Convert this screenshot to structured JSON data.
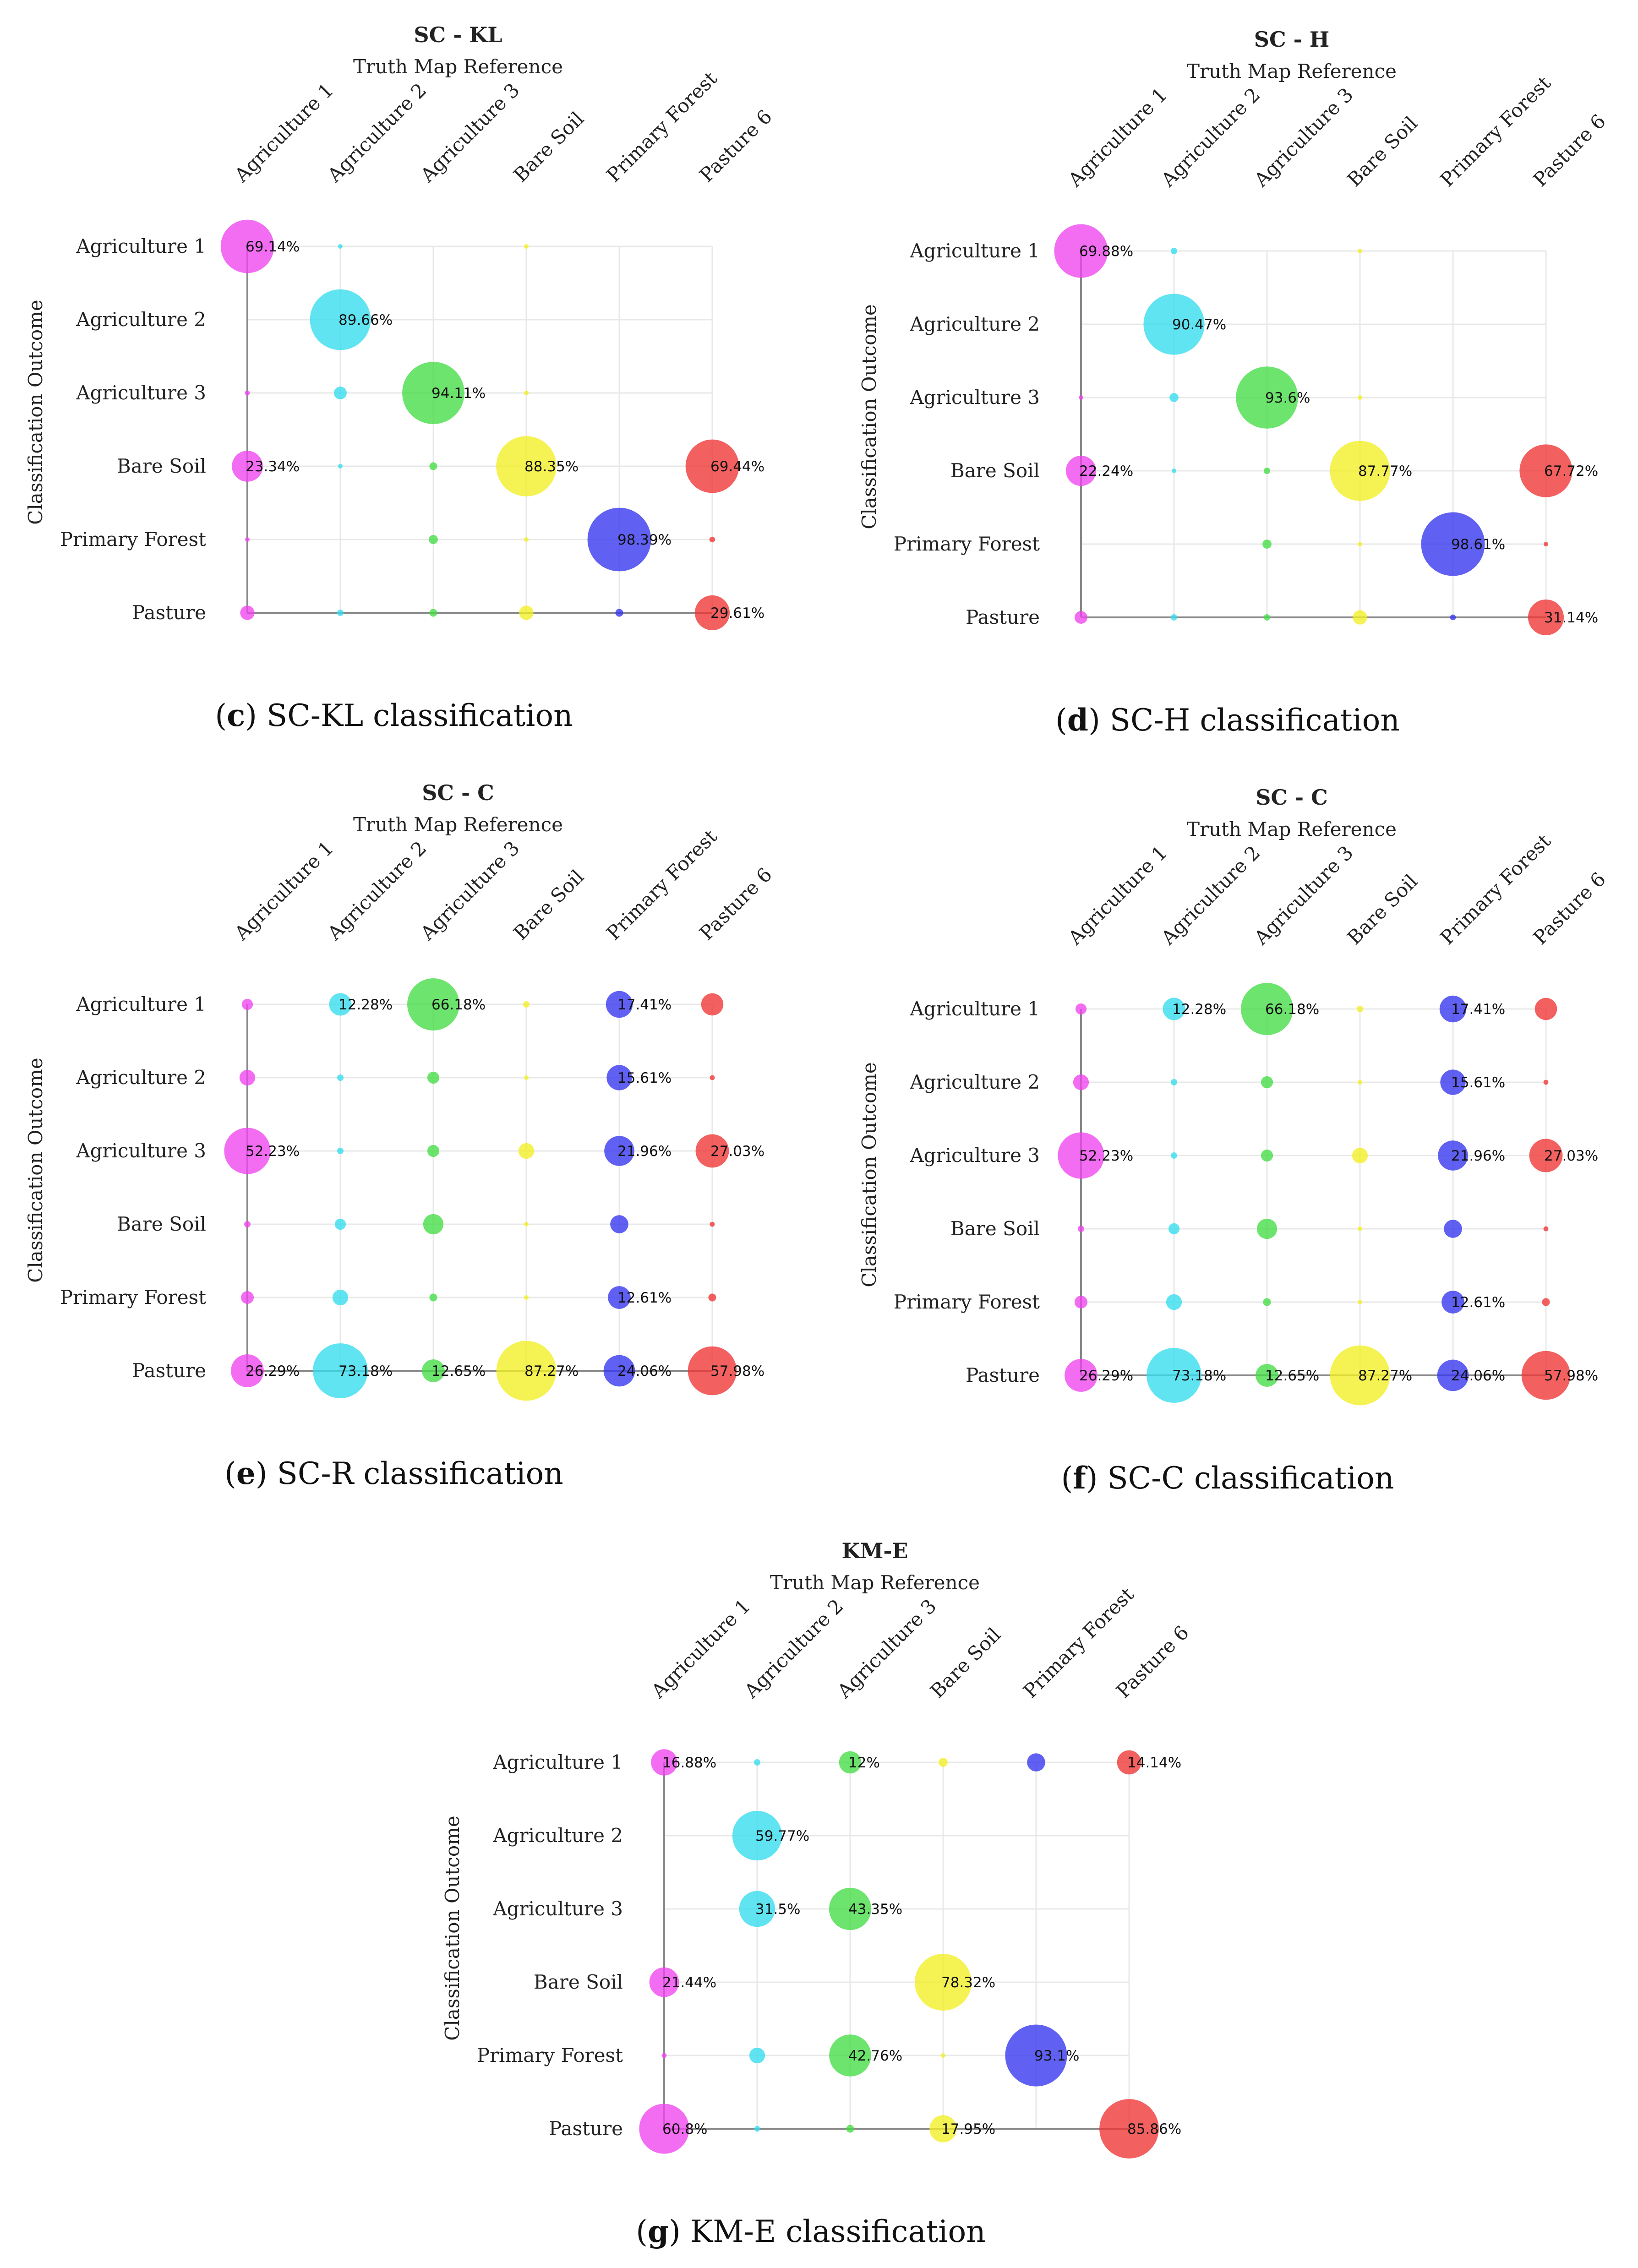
{
  "chart_data": [
    {
      "id": "c",
      "type": "bubble",
      "title": "SC - KL",
      "subtitle": "Truth Map Reference",
      "ylabel": "Classification Outcome",
      "caption_letter": "c",
      "caption_text": " SC-KL classification",
      "columns": [
        "Agriculture 1",
        "Agriculture 2",
        "Agriculture 3",
        "Bare Soil",
        "Primary Forest",
        "Pasture 6"
      ],
      "rows": [
        "Agriculture 1",
        "Agriculture 2",
        "Agriculture 3",
        "Bare Soil",
        "Primary Forest",
        "Pasture"
      ],
      "cells": [
        {
          "r": 0,
          "c": 0,
          "v": 69.14,
          "label": "69.14%"
        },
        {
          "r": 0,
          "c": 1,
          "v": 0.5
        },
        {
          "r": 0,
          "c": 3,
          "v": 0.5
        },
        {
          "r": 1,
          "c": 1,
          "v": 89.66,
          "label": "89.66%"
        },
        {
          "r": 2,
          "c": 0,
          "v": 0.6
        },
        {
          "r": 2,
          "c": 1,
          "v": 4
        },
        {
          "r": 2,
          "c": 2,
          "v": 94.11,
          "label": "94.11%"
        },
        {
          "r": 2,
          "c": 3,
          "v": 0.4
        },
        {
          "r": 3,
          "c": 0,
          "v": 23.34,
          "label": "23.34%"
        },
        {
          "r": 3,
          "c": 1,
          "v": 0.4
        },
        {
          "r": 3,
          "c": 2,
          "v": 1.5
        },
        {
          "r": 3,
          "c": 3,
          "v": 88.35,
          "label": "88.35%"
        },
        {
          "r": 3,
          "c": 5,
          "v": 69.44,
          "label": "69.44%"
        },
        {
          "r": 4,
          "c": 0,
          "v": 0.3
        },
        {
          "r": 4,
          "c": 2,
          "v": 2
        },
        {
          "r": 4,
          "c": 3,
          "v": 0.4
        },
        {
          "r": 4,
          "c": 4,
          "v": 98.39,
          "label": "98.39%"
        },
        {
          "r": 4,
          "c": 5,
          "v": 0.8
        },
        {
          "r": 5,
          "c": 0,
          "v": 5
        },
        {
          "r": 5,
          "c": 1,
          "v": 1
        },
        {
          "r": 5,
          "c": 2,
          "v": 1.5
        },
        {
          "r": 5,
          "c": 3,
          "v": 5
        },
        {
          "r": 5,
          "c": 4,
          "v": 1.5
        },
        {
          "r": 5,
          "c": 5,
          "v": 29.61,
          "label": "29.61%"
        }
      ]
    },
    {
      "id": "d",
      "type": "bubble",
      "title": "SC - H",
      "subtitle": "Truth Map Reference",
      "ylabel": "Classification Outcome",
      "caption_letter": "d",
      "caption_text": " SC-H classification",
      "columns": [
        "Agriculture 1",
        "Agriculture 2",
        "Agriculture 3",
        "Bare Soil",
        "Primary Forest",
        "Pasture 6"
      ],
      "rows": [
        "Agriculture 1",
        "Agriculture 2",
        "Agriculture 3",
        "Bare Soil",
        "Primary Forest",
        "Pasture"
      ],
      "cells": [
        {
          "r": 0,
          "c": 0,
          "v": 69.88,
          "label": "69.88%"
        },
        {
          "r": 0,
          "c": 1,
          "v": 1
        },
        {
          "r": 0,
          "c": 3,
          "v": 0.4
        },
        {
          "r": 1,
          "c": 1,
          "v": 90.47,
          "label": "90.47%"
        },
        {
          "r": 2,
          "c": 0,
          "v": 0.5
        },
        {
          "r": 2,
          "c": 1,
          "v": 2
        },
        {
          "r": 2,
          "c": 2,
          "v": 93.6,
          "label": "93.6%"
        },
        {
          "r": 2,
          "c": 3,
          "v": 0.3
        },
        {
          "r": 3,
          "c": 0,
          "v": 22.24,
          "label": "22.24%"
        },
        {
          "r": 3,
          "c": 1,
          "v": 0.5
        },
        {
          "r": 3,
          "c": 2,
          "v": 1
        },
        {
          "r": 3,
          "c": 3,
          "v": 87.77,
          "label": "87.77%"
        },
        {
          "r": 3,
          "c": 5,
          "v": 67.72,
          "label": "67.72%"
        },
        {
          "r": 4,
          "c": 2,
          "v": 2
        },
        {
          "r": 4,
          "c": 3,
          "v": 0.3
        },
        {
          "r": 4,
          "c": 4,
          "v": 98.61,
          "label": "98.61%"
        },
        {
          "r": 4,
          "c": 5,
          "v": 0.5
        },
        {
          "r": 5,
          "c": 0,
          "v": 4
        },
        {
          "r": 5,
          "c": 1,
          "v": 1
        },
        {
          "r": 5,
          "c": 2,
          "v": 1
        },
        {
          "r": 5,
          "c": 3,
          "v": 5
        },
        {
          "r": 5,
          "c": 4,
          "v": 0.8
        },
        {
          "r": 5,
          "c": 5,
          "v": 31.14,
          "label": "31.14%"
        }
      ]
    },
    {
      "id": "e",
      "type": "bubble",
      "title": "SC - C",
      "subtitle": "Truth Map Reference",
      "ylabel": "Classification Outcome",
      "caption_letter": "e",
      "caption_text": " SC-R classification",
      "columns": [
        "Agriculture 1",
        "Agriculture 2",
        "Agriculture 3",
        "Bare Soil",
        "Primary Forest",
        "Pasture 6"
      ],
      "rows": [
        "Agriculture 1",
        "Agriculture 2",
        "Agriculture 3",
        "Bare Soil",
        "Primary Forest",
        "Pasture"
      ],
      "cells": [
        {
          "r": 0,
          "c": 0,
          "v": 3
        },
        {
          "r": 0,
          "c": 1,
          "v": 12.28,
          "label": "12.28%"
        },
        {
          "r": 0,
          "c": 2,
          "v": 66.18,
          "label": "66.18%"
        },
        {
          "r": 0,
          "c": 3,
          "v": 1
        },
        {
          "r": 0,
          "c": 4,
          "v": 17.41,
          "label": "17.41%"
        },
        {
          "r": 0,
          "c": 5,
          "v": 12
        },
        {
          "r": 1,
          "c": 0,
          "v": 6
        },
        {
          "r": 1,
          "c": 1,
          "v": 1
        },
        {
          "r": 1,
          "c": 2,
          "v": 3.5
        },
        {
          "r": 1,
          "c": 3,
          "v": 0.3
        },
        {
          "r": 1,
          "c": 4,
          "v": 15.61,
          "label": "15.61%"
        },
        {
          "r": 1,
          "c": 5,
          "v": 0.6
        },
        {
          "r": 2,
          "c": 0,
          "v": 52.23,
          "label": "52.23%"
        },
        {
          "r": 2,
          "c": 1,
          "v": 1
        },
        {
          "r": 2,
          "c": 2,
          "v": 3.5
        },
        {
          "r": 2,
          "c": 3,
          "v": 6
        },
        {
          "r": 2,
          "c": 4,
          "v": 21.96,
          "label": "21.96%"
        },
        {
          "r": 2,
          "c": 5,
          "v": 27.03,
          "label": "27.03%"
        },
        {
          "r": 3,
          "c": 0,
          "v": 1
        },
        {
          "r": 3,
          "c": 1,
          "v": 3
        },
        {
          "r": 3,
          "c": 2,
          "v": 10
        },
        {
          "r": 3,
          "c": 3,
          "v": 0.3
        },
        {
          "r": 3,
          "c": 4,
          "v": 8
        },
        {
          "r": 3,
          "c": 5,
          "v": 0.6
        },
        {
          "r": 4,
          "c": 0,
          "v": 4
        },
        {
          "r": 4,
          "c": 1,
          "v": 6
        },
        {
          "r": 4,
          "c": 2,
          "v": 1.5
        },
        {
          "r": 4,
          "c": 3,
          "v": 0.5
        },
        {
          "r": 4,
          "c": 4,
          "v": 12.61,
          "label": "12.61%"
        },
        {
          "r": 4,
          "c": 5,
          "v": 1.5
        },
        {
          "r": 5,
          "c": 0,
          "v": 26.29,
          "label": "26.29%"
        },
        {
          "r": 5,
          "c": 1,
          "v": 73.18,
          "label": "73.18%"
        },
        {
          "r": 5,
          "c": 2,
          "v": 12.65,
          "label": "12.65%"
        },
        {
          "r": 5,
          "c": 3,
          "v": 87.27,
          "label": "87.27%"
        },
        {
          "r": 5,
          "c": 4,
          "v": 24.06,
          "label": "24.06%"
        },
        {
          "r": 5,
          "c": 5,
          "v": 57.98,
          "label": "57.98%"
        }
      ]
    },
    {
      "id": "f",
      "type": "bubble",
      "title": "SC - C",
      "subtitle": "Truth Map Reference",
      "ylabel": "Classification Outcome",
      "caption_letter": "f",
      "caption_text": " SC-C classification",
      "columns": [
        "Agriculture 1",
        "Agriculture 2",
        "Agriculture 3",
        "Bare Soil",
        "Primary Forest",
        "Pasture 6"
      ],
      "rows": [
        "Agriculture 1",
        "Agriculture 2",
        "Agriculture 3",
        "Bare Soil",
        "Primary Forest",
        "Pasture"
      ],
      "cells": [
        {
          "r": 0,
          "c": 0,
          "v": 3
        },
        {
          "r": 0,
          "c": 1,
          "v": 12.28,
          "label": "12.28%"
        },
        {
          "r": 0,
          "c": 2,
          "v": 66.18,
          "label": "66.18%"
        },
        {
          "r": 0,
          "c": 3,
          "v": 1
        },
        {
          "r": 0,
          "c": 4,
          "v": 17.41,
          "label": "17.41%"
        },
        {
          "r": 0,
          "c": 5,
          "v": 12
        },
        {
          "r": 1,
          "c": 0,
          "v": 6
        },
        {
          "r": 1,
          "c": 1,
          "v": 1
        },
        {
          "r": 1,
          "c": 2,
          "v": 3.5
        },
        {
          "r": 1,
          "c": 3,
          "v": 0.3
        },
        {
          "r": 1,
          "c": 4,
          "v": 15.61,
          "label": "15.61%"
        },
        {
          "r": 1,
          "c": 5,
          "v": 0.6
        },
        {
          "r": 2,
          "c": 0,
          "v": 52.23,
          "label": "52.23%"
        },
        {
          "r": 2,
          "c": 1,
          "v": 1
        },
        {
          "r": 2,
          "c": 2,
          "v": 3.5
        },
        {
          "r": 2,
          "c": 3,
          "v": 6
        },
        {
          "r": 2,
          "c": 4,
          "v": 21.96,
          "label": "21.96%"
        },
        {
          "r": 2,
          "c": 5,
          "v": 27.03,
          "label": "27.03%"
        },
        {
          "r": 3,
          "c": 0,
          "v": 1
        },
        {
          "r": 3,
          "c": 1,
          "v": 3
        },
        {
          "r": 3,
          "c": 2,
          "v": 10
        },
        {
          "r": 3,
          "c": 3,
          "v": 0.3
        },
        {
          "r": 3,
          "c": 4,
          "v": 8
        },
        {
          "r": 3,
          "c": 5,
          "v": 0.6
        },
        {
          "r": 4,
          "c": 0,
          "v": 4
        },
        {
          "r": 4,
          "c": 1,
          "v": 6
        },
        {
          "r": 4,
          "c": 2,
          "v": 1.5
        },
        {
          "r": 4,
          "c": 3,
          "v": 0.5
        },
        {
          "r": 4,
          "c": 4,
          "v": 12.61,
          "label": "12.61%"
        },
        {
          "r": 4,
          "c": 5,
          "v": 1.5
        },
        {
          "r": 5,
          "c": 0,
          "v": 26.29,
          "label": "26.29%"
        },
        {
          "r": 5,
          "c": 1,
          "v": 73.18,
          "label": "73.18%"
        },
        {
          "r": 5,
          "c": 2,
          "v": 12.65,
          "label": "12.65%"
        },
        {
          "r": 5,
          "c": 3,
          "v": 87.27,
          "label": "87.27%"
        },
        {
          "r": 5,
          "c": 4,
          "v": 24.06,
          "label": "24.06%"
        },
        {
          "r": 5,
          "c": 5,
          "v": 57.98,
          "label": "57.98%"
        }
      ]
    },
    {
      "id": "g",
      "type": "bubble",
      "title": "KM-E",
      "subtitle": "Truth Map Reference",
      "ylabel": "Classification Outcome",
      "caption_letter": "g",
      "caption_text": " KM-E classification",
      "columns": [
        "Agriculture 1",
        "Agriculture 2",
        "Agriculture 3",
        "Bare Soil",
        "Primary Forest",
        "Pasture 6"
      ],
      "rows": [
        "Agriculture 1",
        "Agriculture 2",
        "Agriculture 3",
        "Bare Soil",
        "Primary Forest",
        "Pasture"
      ],
      "cells": [
        {
          "r": 0,
          "c": 0,
          "v": 16.88,
          "label": "16.88%"
        },
        {
          "r": 0,
          "c": 1,
          "v": 1
        },
        {
          "r": 0,
          "c": 2,
          "v": 12,
          "label": "12%"
        },
        {
          "r": 0,
          "c": 3,
          "v": 2
        },
        {
          "r": 0,
          "c": 4,
          "v": 8
        },
        {
          "r": 0,
          "c": 5,
          "v": 14.14,
          "label": "14.14%"
        },
        {
          "r": 1,
          "c": 1,
          "v": 59.77,
          "label": "59.77%"
        },
        {
          "r": 2,
          "c": 1,
          "v": 31.5,
          "label": "31.5%"
        },
        {
          "r": 2,
          "c": 2,
          "v": 43.35,
          "label": "43.35%"
        },
        {
          "r": 3,
          "c": 0,
          "v": 21.44,
          "label": "21.44%"
        },
        {
          "r": 3,
          "c": 3,
          "v": 78.32,
          "label": "78.32%"
        },
        {
          "r": 4,
          "c": 0,
          "v": 0.6
        },
        {
          "r": 4,
          "c": 1,
          "v": 6
        },
        {
          "r": 4,
          "c": 2,
          "v": 42.76,
          "label": "42.76%"
        },
        {
          "r": 4,
          "c": 3,
          "v": 0.3
        },
        {
          "r": 4,
          "c": 4,
          "v": 93.1,
          "label": "93.1%"
        },
        {
          "r": 5,
          "c": 0,
          "v": 60.8,
          "label": "60.8%"
        },
        {
          "r": 5,
          "c": 1,
          "v": 0.8
        },
        {
          "r": 5,
          "c": 2,
          "v": 1.5
        },
        {
          "r": 5,
          "c": 3,
          "v": 17.95,
          "label": "17.95%"
        },
        {
          "r": 5,
          "c": 5,
          "v": 85.86,
          "label": "85.86%"
        }
      ]
    }
  ],
  "colors": {
    "columns": [
      "#ee44ee",
      "#33ddee",
      "#44dd44",
      "#f2ee22",
      "#3333ee",
      "#ee3333"
    ],
    "grid": "#e8e8e8",
    "axis": "#888888",
    "text": "#222222"
  }
}
